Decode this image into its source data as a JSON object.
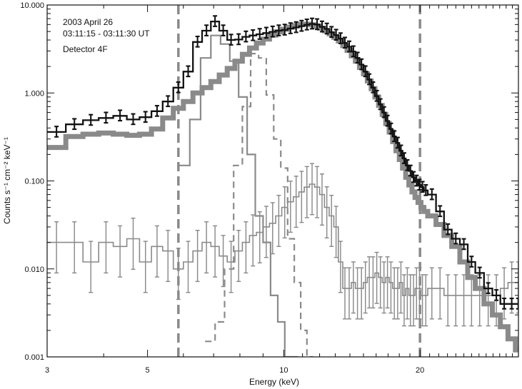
{
  "chart_data": {
    "type": "line",
    "title": "",
    "xlabel": "Energy (keV)",
    "ylabel": "Counts s⁻¹ cm⁻² keV⁻¹",
    "x_scale": "log",
    "y_scale": "log",
    "xlim": [
      3,
      33
    ],
    "ylim": [
      0.001,
      10
    ],
    "x_ticks": [
      3,
      5,
      10,
      20
    ],
    "x_tick_labels": [
      "3",
      "5",
      "10",
      "20"
    ],
    "y_ticks": [
      0.001,
      0.01,
      0.1,
      1,
      10
    ],
    "y_tick_labels": [
      "0.001",
      "0.010",
      "0.100",
      "1.000",
      "10.000"
    ],
    "annotations": [
      "2003 April 26",
      "03:11:15 - 03:11:30 UT",
      "Detector 4F"
    ],
    "vertical_lines": [
      5.85,
      20
    ],
    "grid": false,
    "series": [
      {
        "role": "observed",
        "style": "black-step-errorbars",
        "color": "#111111",
        "x": [
          3.0,
          3.3,
          3.6,
          3.9,
          4.2,
          4.5,
          4.8,
          5.1,
          5.4,
          5.7,
          6.0,
          6.3,
          6.6,
          6.9,
          7.2,
          7.5,
          7.8,
          8.1,
          8.4,
          8.7,
          9.0,
          9.3,
          9.6,
          9.9,
          10.2,
          10.5,
          10.8,
          11.1,
          11.4,
          11.7,
          12.0,
          12.3,
          12.6,
          12.9,
          13.2,
          13.5,
          13.8,
          14.1,
          14.4,
          14.7,
          15.0,
          15.3,
          15.6,
          15.9,
          16.2,
          16.5,
          16.8,
          17.1,
          17.4,
          17.7,
          18.0,
          18.3,
          18.6,
          18.9,
          19.2,
          19.5,
          19.8,
          20.1,
          20.4,
          20.8,
          21.7,
          22.6,
          23.5,
          24.5,
          25.5,
          26.5,
          27.7,
          28.9,
          30.1,
          31.3,
          32.5
        ],
        "values": [
          0.36,
          0.44,
          0.49,
          0.52,
          0.55,
          0.5,
          0.53,
          0.62,
          0.8,
          1.15,
          1.75,
          3.8,
          5.1,
          6.5,
          5.1,
          4.0,
          4.05,
          4.35,
          4.5,
          4.65,
          4.8,
          4.95,
          5.1,
          5.2,
          5.4,
          5.55,
          5.75,
          5.95,
          6.1,
          6.0,
          5.65,
          5.35,
          4.9,
          4.55,
          4.15,
          3.7,
          3.35,
          2.95,
          2.5,
          2.1,
          1.75,
          1.42,
          1.15,
          0.92,
          0.74,
          0.6,
          0.48,
          0.39,
          0.32,
          0.27,
          0.22,
          0.18,
          0.15,
          0.13,
          0.11,
          0.1,
          0.09,
          0.085,
          0.078,
          0.07,
          0.045,
          0.028,
          0.022,
          0.019,
          0.012,
          0.009,
          0.006,
          0.005,
          0.004,
          0.004,
          0.004
        ]
      },
      {
        "role": "total-model",
        "style": "thick-gray-step",
        "color": "#8a8a8a",
        "x": [
          3.0,
          3.3,
          3.6,
          3.9,
          4.2,
          4.5,
          4.8,
          5.1,
          5.4,
          5.7,
          6.0,
          6.3,
          6.6,
          6.9,
          7.2,
          7.5,
          7.8,
          8.1,
          8.4,
          8.7,
          9.0,
          9.3,
          9.6,
          9.9,
          10.2,
          10.5,
          10.8,
          11.1,
          11.4,
          11.7,
          12.0,
          12.3,
          12.6,
          12.9,
          13.2,
          13.5,
          13.8,
          14.1,
          14.4,
          14.7,
          15.0,
          15.3,
          15.6,
          15.9,
          16.2,
          16.5,
          16.8,
          17.1,
          17.4,
          17.7,
          18.0,
          18.3,
          18.6,
          18.9,
          19.2,
          19.5,
          19.8,
          20.1,
          20.4,
          20.8,
          21.7,
          22.6,
          23.5,
          24.5,
          25.5,
          26.5,
          27.7,
          28.9,
          30.1,
          31.3,
          32.5
        ],
        "values": [
          0.24,
          0.32,
          0.34,
          0.35,
          0.34,
          0.33,
          0.34,
          0.39,
          0.52,
          0.67,
          0.8,
          1.0,
          1.15,
          1.35,
          1.6,
          1.9,
          2.3,
          2.75,
          3.25,
          3.7,
          4.1,
          4.55,
          4.95,
          5.3,
          5.6,
          5.85,
          6.0,
          6.05,
          5.95,
          5.75,
          5.45,
          5.1,
          4.7,
          4.3,
          3.9,
          3.45,
          3.05,
          2.65,
          2.3,
          1.95,
          1.65,
          1.37,
          1.12,
          0.9,
          0.72,
          0.57,
          0.45,
          0.36,
          0.28,
          0.22,
          0.175,
          0.14,
          0.11,
          0.09,
          0.075,
          0.065,
          0.057,
          0.05,
          0.045,
          0.04,
          0.032,
          0.024,
          0.018,
          0.012,
          0.008,
          0.006,
          0.004,
          0.003,
          0.0022,
          0.0016,
          0.0012
        ]
      },
      {
        "role": "line-component",
        "style": "gray-step-solid",
        "color": "#8a8a8a",
        "x": [
          5.85,
          6.2,
          6.55,
          6.9,
          7.25,
          7.6,
          7.95,
          8.3,
          8.65,
          9.0,
          9.35,
          9.7,
          10.05,
          10.4
        ],
        "values": [
          0.15,
          0.5,
          2.5,
          4.5,
          3.6,
          2.3,
          0.9,
          0.2,
          0.04,
          0.02,
          0.005,
          0.0025,
          0.001,
          0.001
        ]
      },
      {
        "role": "line-component",
        "style": "gray-step-dashed",
        "color": "#8a8a8a",
        "x": [
          6.7,
          7.05,
          7.4,
          7.75,
          8.1,
          8.45,
          8.8,
          9.15,
          9.5,
          9.85,
          10.2,
          10.55,
          10.9,
          11.25
        ],
        "values": [
          0.0015,
          0.0025,
          0.01,
          0.15,
          0.7,
          2.8,
          2.5,
          0.95,
          0.3,
          0.14,
          0.022,
          0.007,
          0.002,
          0.001
        ]
      },
      {
        "role": "background",
        "style": "thin-gray-step-errorbars",
        "color": "#8a8a8a",
        "x": [
          3.0,
          3.3,
          3.6,
          3.9,
          4.2,
          4.5,
          4.8,
          5.1,
          5.4,
          5.7,
          6.0,
          6.3,
          6.6,
          6.9,
          7.2,
          7.5,
          7.8,
          8.1,
          8.4,
          8.7,
          9.0,
          9.3,
          9.6,
          9.9,
          10.2,
          10.5,
          10.8,
          11.1,
          11.4,
          11.7,
          12.0,
          12.3,
          12.6,
          12.9,
          13.2,
          13.5,
          13.8,
          14.1,
          14.4,
          14.7,
          15.0,
          15.3,
          15.6,
          15.9,
          16.2,
          16.5,
          16.8,
          17.1,
          17.4,
          17.7,
          18.0,
          18.3,
          18.6,
          18.9,
          19.2,
          19.5,
          19.8,
          20.1,
          20.4,
          20.8,
          21.7,
          22.6,
          23.5,
          24.5,
          25.5,
          26.5,
          27.7,
          28.9,
          30.1,
          31.3,
          32.5
        ],
        "values": [
          0.02,
          0.02,
          0.012,
          0.02,
          0.018,
          0.022,
          0.012,
          0.018,
          0.016,
          0.01,
          0.012,
          0.016,
          0.02,
          0.018,
          0.014,
          0.012,
          0.016,
          0.02,
          0.024,
          0.026,
          0.03,
          0.033,
          0.04,
          0.05,
          0.058,
          0.066,
          0.075,
          0.085,
          0.092,
          0.085,
          0.07,
          0.05,
          0.04,
          0.03,
          0.012,
          0.006,
          0.006,
          0.007,
          0.006,
          0.006,
          0.007,
          0.008,
          0.008,
          0.009,
          0.008,
          0.007,
          0.008,
          0.007,
          0.006,
          0.006,
          0.007,
          0.005,
          0.006,
          0.005,
          0.005,
          0.006,
          0.006,
          0.005,
          0.005,
          0.006,
          0.006,
          0.005,
          0.005,
          0.005,
          0.005,
          0.005,
          0.005,
          0.005,
          0.006,
          0.007,
          0.007
        ]
      }
    ]
  }
}
